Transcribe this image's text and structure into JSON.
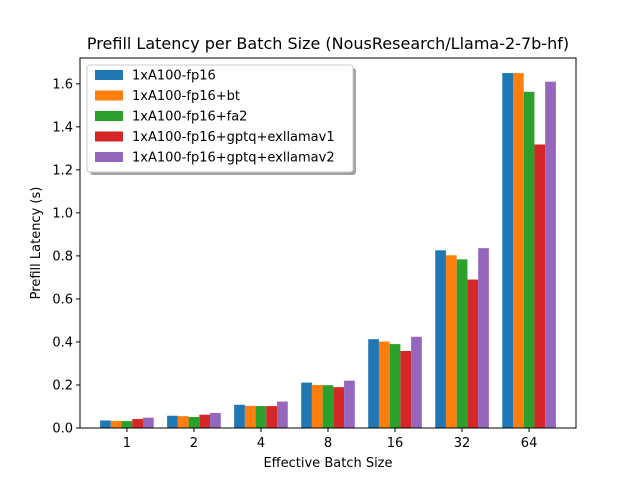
{
  "chart_data": {
    "type": "bar",
    "title": "Prefill Latency per Batch Size (NousResearch/Llama-2-7b-hf)",
    "xlabel": "Effective Batch Size",
    "ylabel": "Prefill Latency (s)",
    "ylim": [
      0,
      1.72
    ],
    "yticks": [
      "0.0",
      "0.2",
      "0.4",
      "0.6",
      "0.8",
      "1.0",
      "1.2",
      "1.4",
      "1.6"
    ],
    "categories": [
      "1",
      "2",
      "4",
      "8",
      "16",
      "32",
      "64"
    ],
    "legend_position": "top-left",
    "series": [
      {
        "name": "1xA100-fp16",
        "color": "#1f77b4",
        "values": [
          0.035,
          0.057,
          0.108,
          0.211,
          0.413,
          0.826,
          1.65
        ]
      },
      {
        "name": "1xA100-fp16+bt",
        "color": "#ff7f0e",
        "values": [
          0.033,
          0.055,
          0.103,
          0.2,
          0.402,
          0.803,
          1.65
        ]
      },
      {
        "name": "1xA100-fp16+fa2",
        "color": "#2ca02c",
        "values": [
          0.032,
          0.051,
          0.102,
          0.199,
          0.39,
          0.784,
          1.563
        ]
      },
      {
        "name": "1xA100-fp16+gptq+exllamav1",
        "color": "#d62728",
        "values": [
          0.042,
          0.062,
          0.102,
          0.19,
          0.358,
          0.69,
          1.318
        ]
      },
      {
        "name": "1xA100-fp16+gptq+exllamav2",
        "color": "#9467bd",
        "values": [
          0.048,
          0.07,
          0.123,
          0.22,
          0.424,
          0.836,
          1.61
        ]
      }
    ]
  }
}
